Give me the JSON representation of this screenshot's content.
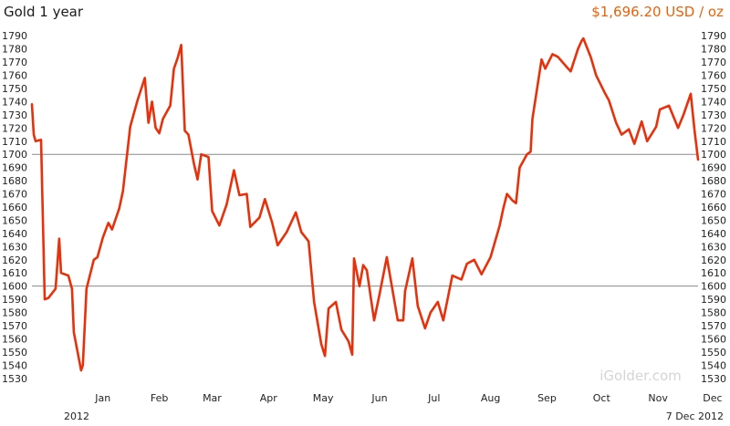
{
  "chart_data": {
    "type": "line",
    "title": "Gold 1 year",
    "price_label": "$1,696.20 USD / oz",
    "watermark": "iGolder.com",
    "year_label": "2012",
    "date_label": "7 Dec 2012",
    "x_ticks": [
      "Jan",
      "Feb",
      "Mar",
      "Apr",
      "May",
      "Jun",
      "Jul",
      "Aug",
      "Sep",
      "Oct",
      "Nov",
      "Dec"
    ],
    "y_ticks": [
      1790,
      1780,
      1770,
      1760,
      1750,
      1740,
      1730,
      1720,
      1710,
      1700,
      1690,
      1680,
      1670,
      1660,
      1650,
      1640,
      1630,
      1620,
      1610,
      1600,
      1590,
      1580,
      1570,
      1560,
      1550,
      1540,
      1530
    ],
    "ylim": [
      1525,
      1795
    ],
    "reference_lines": [
      1700,
      1600
    ],
    "line_color": "#e8300a",
    "series": [
      {
        "x": [
          "2011-12-07",
          "2011-12-08",
          "2011-12-09",
          "2011-12-12",
          "2011-12-14",
          "2011-12-16",
          "2011-12-20",
          "2011-12-22",
          "2011-12-23",
          "2011-12-27",
          "2011-12-29",
          "2011-12-30",
          "2012-01-03",
          "2012-01-04",
          "2012-01-06",
          "2012-01-10",
          "2012-01-12",
          "2012-01-15",
          "2012-01-18",
          "2012-01-20",
          "2012-01-24",
          "2012-01-26",
          "2012-01-30",
          "2012-02-01",
          "2012-02-03",
          "2012-02-07",
          "2012-02-09",
          "2012-02-11",
          "2012-02-13",
          "2012-02-15",
          "2012-02-17",
          "2012-02-21",
          "2012-02-23",
          "2012-02-25",
          "2012-02-27",
          "2012-02-29",
          "2012-03-02",
          "2012-03-05",
          "2012-03-07",
          "2012-03-09",
          "2012-03-13",
          "2012-03-15",
          "2012-03-19",
          "2012-03-23",
          "2012-03-27",
          "2012-03-30",
          "2012-04-03",
          "2012-04-05",
          "2012-04-10",
          "2012-04-13",
          "2012-04-17",
          "2012-04-20",
          "2012-04-25",
          "2012-04-30",
          "2012-05-03",
          "2012-05-07",
          "2012-05-10",
          "2012-05-14",
          "2012-05-16",
          "2012-05-18",
          "2012-05-22",
          "2012-05-25",
          "2012-05-29",
          "2012-05-31",
          "2012-06-01",
          "2012-06-04",
          "2012-06-06",
          "2012-06-08",
          "2012-06-12",
          "2012-06-15",
          "2012-06-19",
          "2012-06-21",
          "2012-06-25",
          "2012-06-28",
          "2012-06-29",
          "2012-07-03",
          "2012-07-06",
          "2012-07-10",
          "2012-07-13",
          "2012-07-17",
          "2012-07-20",
          "2012-07-25",
          "2012-07-30",
          "2012-08-02",
          "2012-08-06",
          "2012-08-10",
          "2012-08-15",
          "2012-08-20",
          "2012-08-22",
          "2012-08-24",
          "2012-08-27",
          "2012-08-29",
          "2012-08-31",
          "2012-09-04",
          "2012-09-06",
          "2012-09-07",
          "2012-09-12",
          "2012-09-14",
          "2012-09-18",
          "2012-09-21",
          "2012-09-26",
          "2012-09-28",
          "2012-10-02",
          "2012-10-04",
          "2012-10-05",
          "2012-10-09",
          "2012-10-12",
          "2012-10-17",
          "2012-10-19",
          "2012-10-23",
          "2012-10-26",
          "2012-10-30",
          "2012-11-02",
          "2012-11-06",
          "2012-11-09",
          "2012-11-14",
          "2012-11-16",
          "2012-11-21",
          "2012-11-26",
          "2012-11-29",
          "2012-12-03",
          "2012-12-05",
          "2012-12-07"
        ],
        "y": [
          1738,
          1715,
          1710,
          1711,
          1590,
          1591,
          1598,
          1636,
          1610,
          1608,
          1598,
          1565,
          1536,
          1540,
          1598,
          1620,
          1622,
          1637,
          1648,
          1643,
          1659,
          1672,
          1721,
          1731,
          1741,
          1758,
          1724,
          1740,
          1720,
          1716,
          1727,
          1737,
          1765,
          1773,
          1783,
          1718,
          1715,
          1693,
          1681,
          1700,
          1698,
          1657,
          1646,
          1662,
          1688,
          1669,
          1670,
          1645,
          1652,
          1666,
          1648,
          1631,
          1641,
          1656,
          1641,
          1634,
          1588,
          1556,
          1547,
          1583,
          1588,
          1567,
          1558,
          1548,
          1621,
          1600,
          1616,
          1612,
          1574,
          1594,
          1622,
          1606,
          1574,
          1574,
          1596,
          1621,
          1585,
          1568,
          1580,
          1588,
          1574,
          1608,
          1605,
          1617,
          1620,
          1609,
          1622,
          1646,
          1659,
          1670,
          1665,
          1663,
          1690,
          1700,
          1702,
          1727,
          1772,
          1765,
          1776,
          1774,
          1766,
          1763,
          1780,
          1786,
          1788,
          1774,
          1760,
          1746,
          1741,
          1724,
          1715,
          1719,
          1708,
          1725,
          1710,
          1721,
          1734,
          1737,
          1720,
          1730,
          1746,
          1719,
          1696
        ]
      }
    ]
  }
}
